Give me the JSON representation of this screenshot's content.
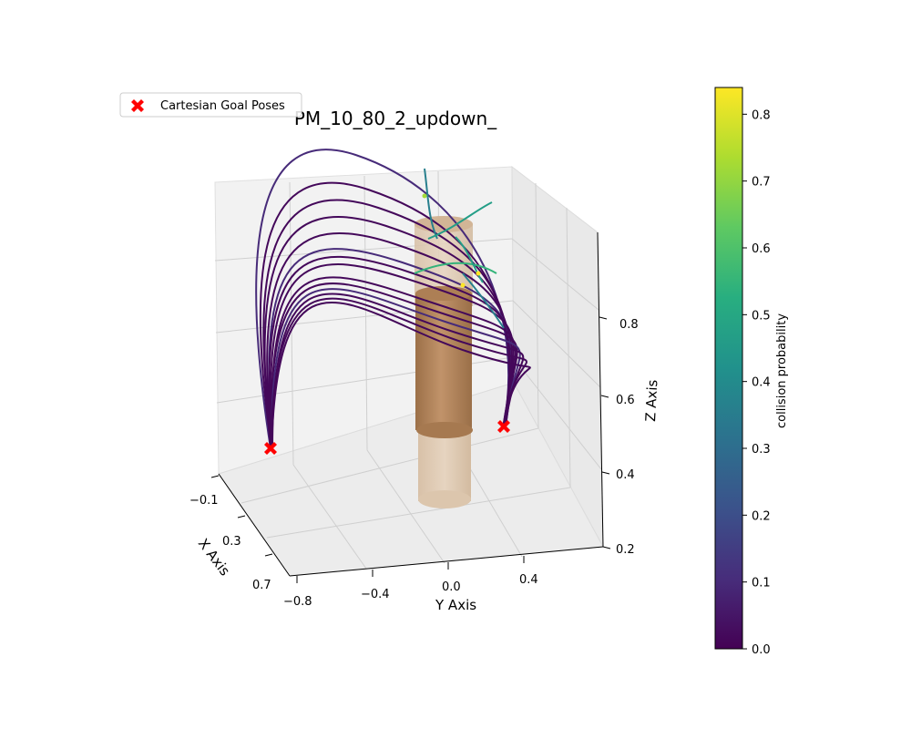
{
  "chart_data": {
    "type": "scatter",
    "chart_kind": "3d-trajectory-scatter",
    "title": "PM_10_80_2_updown_",
    "xlabel": "X Axis",
    "ylabel": "Y Axis",
    "zlabel": "Z Axis",
    "x_ticks": [
      "−0.1",
      "0.3",
      "0.7"
    ],
    "y_ticks": [
      "−0.8",
      "−0.4",
      "0.0",
      "0.4"
    ],
    "z_ticks": [
      "0.2",
      "0.4",
      "0.6",
      "0.8"
    ],
    "xlim": [
      -0.1,
      0.7
    ],
    "ylim": [
      -0.8,
      0.6
    ],
    "zlim": [
      0.2,
      1.0
    ],
    "grid": true,
    "legend": {
      "position": "top-left",
      "entries": [
        "Cartesian Goal Poses"
      ]
    },
    "goal_poses": [
      {
        "x": 0.3,
        "y": -0.65,
        "z": 0.42
      },
      {
        "x": 0.3,
        "y": 0.45,
        "z": 0.42
      }
    ],
    "colorbar": {
      "label": "collision probability",
      "colormap": "viridis",
      "range": [
        0.0,
        0.84
      ],
      "ticks": [
        "0.0",
        "0.1",
        "0.2",
        "0.3",
        "0.4",
        "0.5",
        "0.6",
        "0.7",
        "0.8"
      ]
    },
    "trajectories": [
      {
        "peak": 0.34,
        "reach": 0.58
      },
      {
        "peak": 0.3,
        "reach": 0.5
      },
      {
        "peak": 0.28,
        "reach": 0.44
      },
      {
        "peak": 0.26,
        "reach": 0.4
      },
      {
        "peak": 0.24,
        "reach": 0.35
      },
      {
        "peak": 0.22,
        "reach": 0.32
      },
      {
        "peak": 0.21,
        "reach": 0.28
      },
      {
        "peak": 0.2,
        "reach": 0.24
      },
      {
        "peak": 0.18,
        "reach": 0.2
      },
      {
        "peak": 0.17,
        "reach": 0.16
      },
      {
        "peak": 0.16,
        "reach": 0.12
      },
      {
        "peak": 0.15,
        "reach": 0.08
      },
      {
        "peak": 0.14,
        "reach": 0.04
      },
      {
        "peak": 0.13,
        "reach": 0.01
      }
    ],
    "collision_highlights": [
      0.55,
      0.72,
      0.84
    ]
  },
  "colors": {
    "goal_marker": "#ff0000",
    "obstacle": "#b5875c",
    "obstacle_light": "#d9c2a7",
    "pane": "#f2f2f2",
    "grid": "#d0d0d0"
  }
}
